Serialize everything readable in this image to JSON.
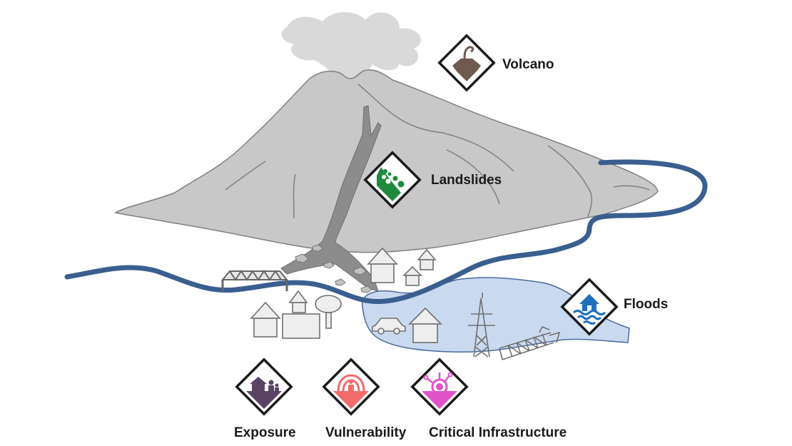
{
  "labels": {
    "volcano": "Volcano",
    "landslides": "Landslides",
    "floods": "Floods",
    "exposure": "Exposure",
    "vulnerability": "Vulnerability",
    "critical_infrastructure": "Critical Infrastructure"
  },
  "icons": {
    "volcano": "volcano-icon",
    "landslides": "landslide-icon",
    "floods": "flood-house-icon",
    "exposure": "exposure-icon",
    "vulnerability": "vulnerability-icon",
    "critical_infrastructure": "critical-infrastructure-icon"
  },
  "colors": {
    "volcano": "#6e5a4e",
    "landslides": "#1f8a3c",
    "floods": "#1f6fbf",
    "exposure": "#5a4466",
    "vulnerability": "#f26b6b",
    "critical_infrastructure": "#e052c8",
    "river": "#3a5f8f",
    "flood_water": "#c9d9ef",
    "mountain": "#c8c8c8"
  }
}
